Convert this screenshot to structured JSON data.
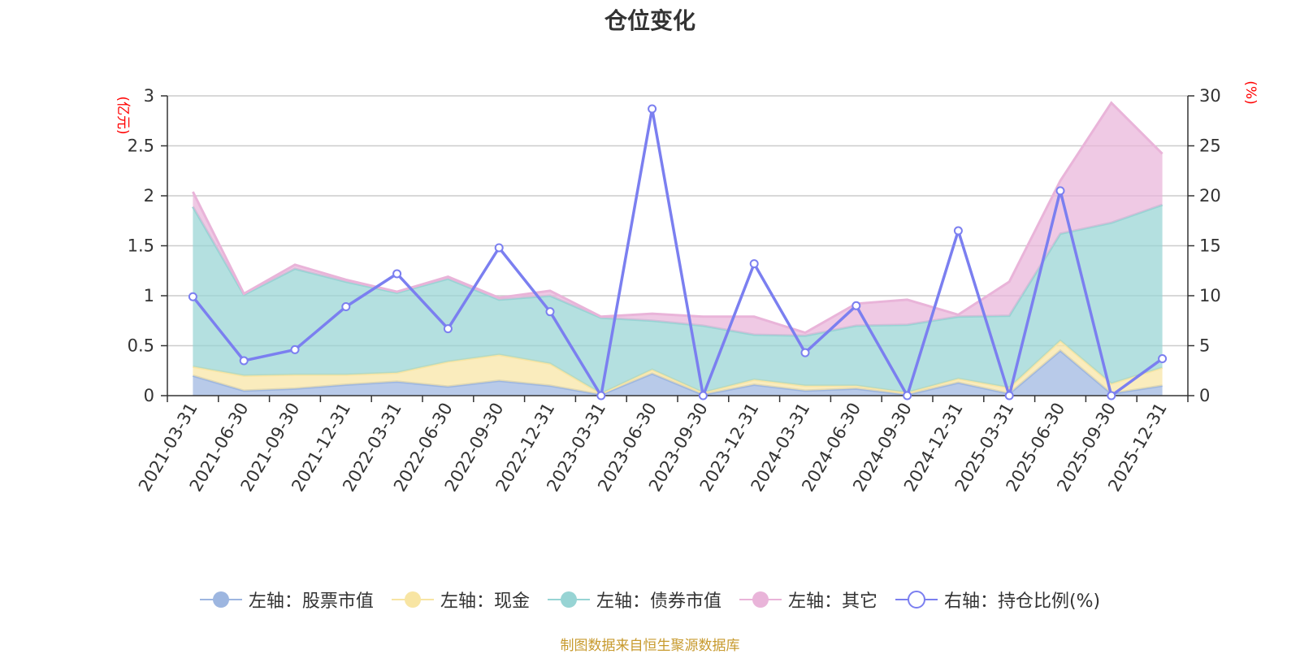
{
  "chart_data": {
    "type": "area",
    "title": "仓位变化",
    "categories": [
      "2021-03-31",
      "2021-06-30",
      "2021-09-30",
      "2021-12-31",
      "2022-03-31",
      "2022-06-30",
      "2022-09-30",
      "2022-12-31",
      "2023-03-31",
      "2023-06-30",
      "2023-09-30",
      "2023-12-31",
      "2024-03-31",
      "2024-06-30",
      "2024-09-30",
      "2024-12-31",
      "2025-03-31",
      "2025-06-30",
      "2025-09-30",
      "2025-12-31"
    ],
    "left_axis": {
      "unit": "(亿元)",
      "ylim": [
        0,
        3
      ],
      "ticks": [
        "0",
        "0.5",
        "1",
        "1.5",
        "2",
        "2.5",
        "3"
      ]
    },
    "right_axis": {
      "unit": "(%)",
      "ylim": [
        0,
        30
      ],
      "ticks": [
        "0",
        "5",
        "10",
        "15",
        "20",
        "25",
        "30"
      ]
    },
    "stacked_series": [
      {
        "name": "左轴：股票市值",
        "color": "#9db6e0",
        "values": [
          0.2,
          0.05,
          0.07,
          0.11,
          0.14,
          0.09,
          0.15,
          0.1,
          0.01,
          0.22,
          0.01,
          0.11,
          0.05,
          0.07,
          0.01,
          0.13,
          0.02,
          0.45,
          0.02,
          0.1
        ]
      },
      {
        "name": "左轴：现金",
        "color": "#f8e5a3",
        "values": [
          0.09,
          0.15,
          0.14,
          0.1,
          0.09,
          0.25,
          0.26,
          0.22,
          0.01,
          0.04,
          0.02,
          0.05,
          0.05,
          0.03,
          0.02,
          0.04,
          0.06,
          0.1,
          0.1,
          0.18
        ]
      },
      {
        "name": "左轴：债券市值",
        "color": "#97d4d4",
        "values": [
          1.6,
          0.81,
          1.06,
          0.93,
          0.8,
          0.83,
          0.55,
          0.68,
          0.76,
          0.49,
          0.67,
          0.45,
          0.5,
          0.6,
          0.68,
          0.62,
          0.72,
          1.07,
          1.61,
          1.63
        ]
      },
      {
        "name": "左轴：其它",
        "color": "#e9b4d9",
        "values": [
          0.15,
          0.01,
          0.04,
          0.02,
          0.01,
          0.02,
          0.02,
          0.05,
          0.01,
          0.07,
          0.09,
          0.18,
          0.03,
          0.22,
          0.25,
          0.02,
          0.34,
          0.53,
          1.2,
          0.51
        ]
      }
    ],
    "line_series": {
      "name": "右轴：持仓比例(%)",
      "color": "#7b7ff0",
      "values": [
        9.9,
        3.5,
        4.6,
        8.9,
        12.2,
        6.7,
        14.8,
        8.4,
        0,
        28.7,
        0,
        13.2,
        4.3,
        9,
        0,
        16.5,
        0,
        20.5,
        0,
        3.7
      ]
    }
  },
  "legend": [
    {
      "label": "左轴：股票市值",
      "swatch_color": "#9db6e0",
      "hollow": false
    },
    {
      "label": "左轴：现金",
      "swatch_color": "#f8e5a3",
      "hollow": false
    },
    {
      "label": "左轴：债券市值",
      "swatch_color": "#97d4d4",
      "hollow": false
    },
    {
      "label": "左轴：其它",
      "swatch_color": "#e9b4d9",
      "hollow": false
    },
    {
      "label": "右轴：持仓比例(%)",
      "swatch_color": "#7b7ff0",
      "hollow": true
    }
  ],
  "source_note": "制图数据来自恒生聚源数据库"
}
